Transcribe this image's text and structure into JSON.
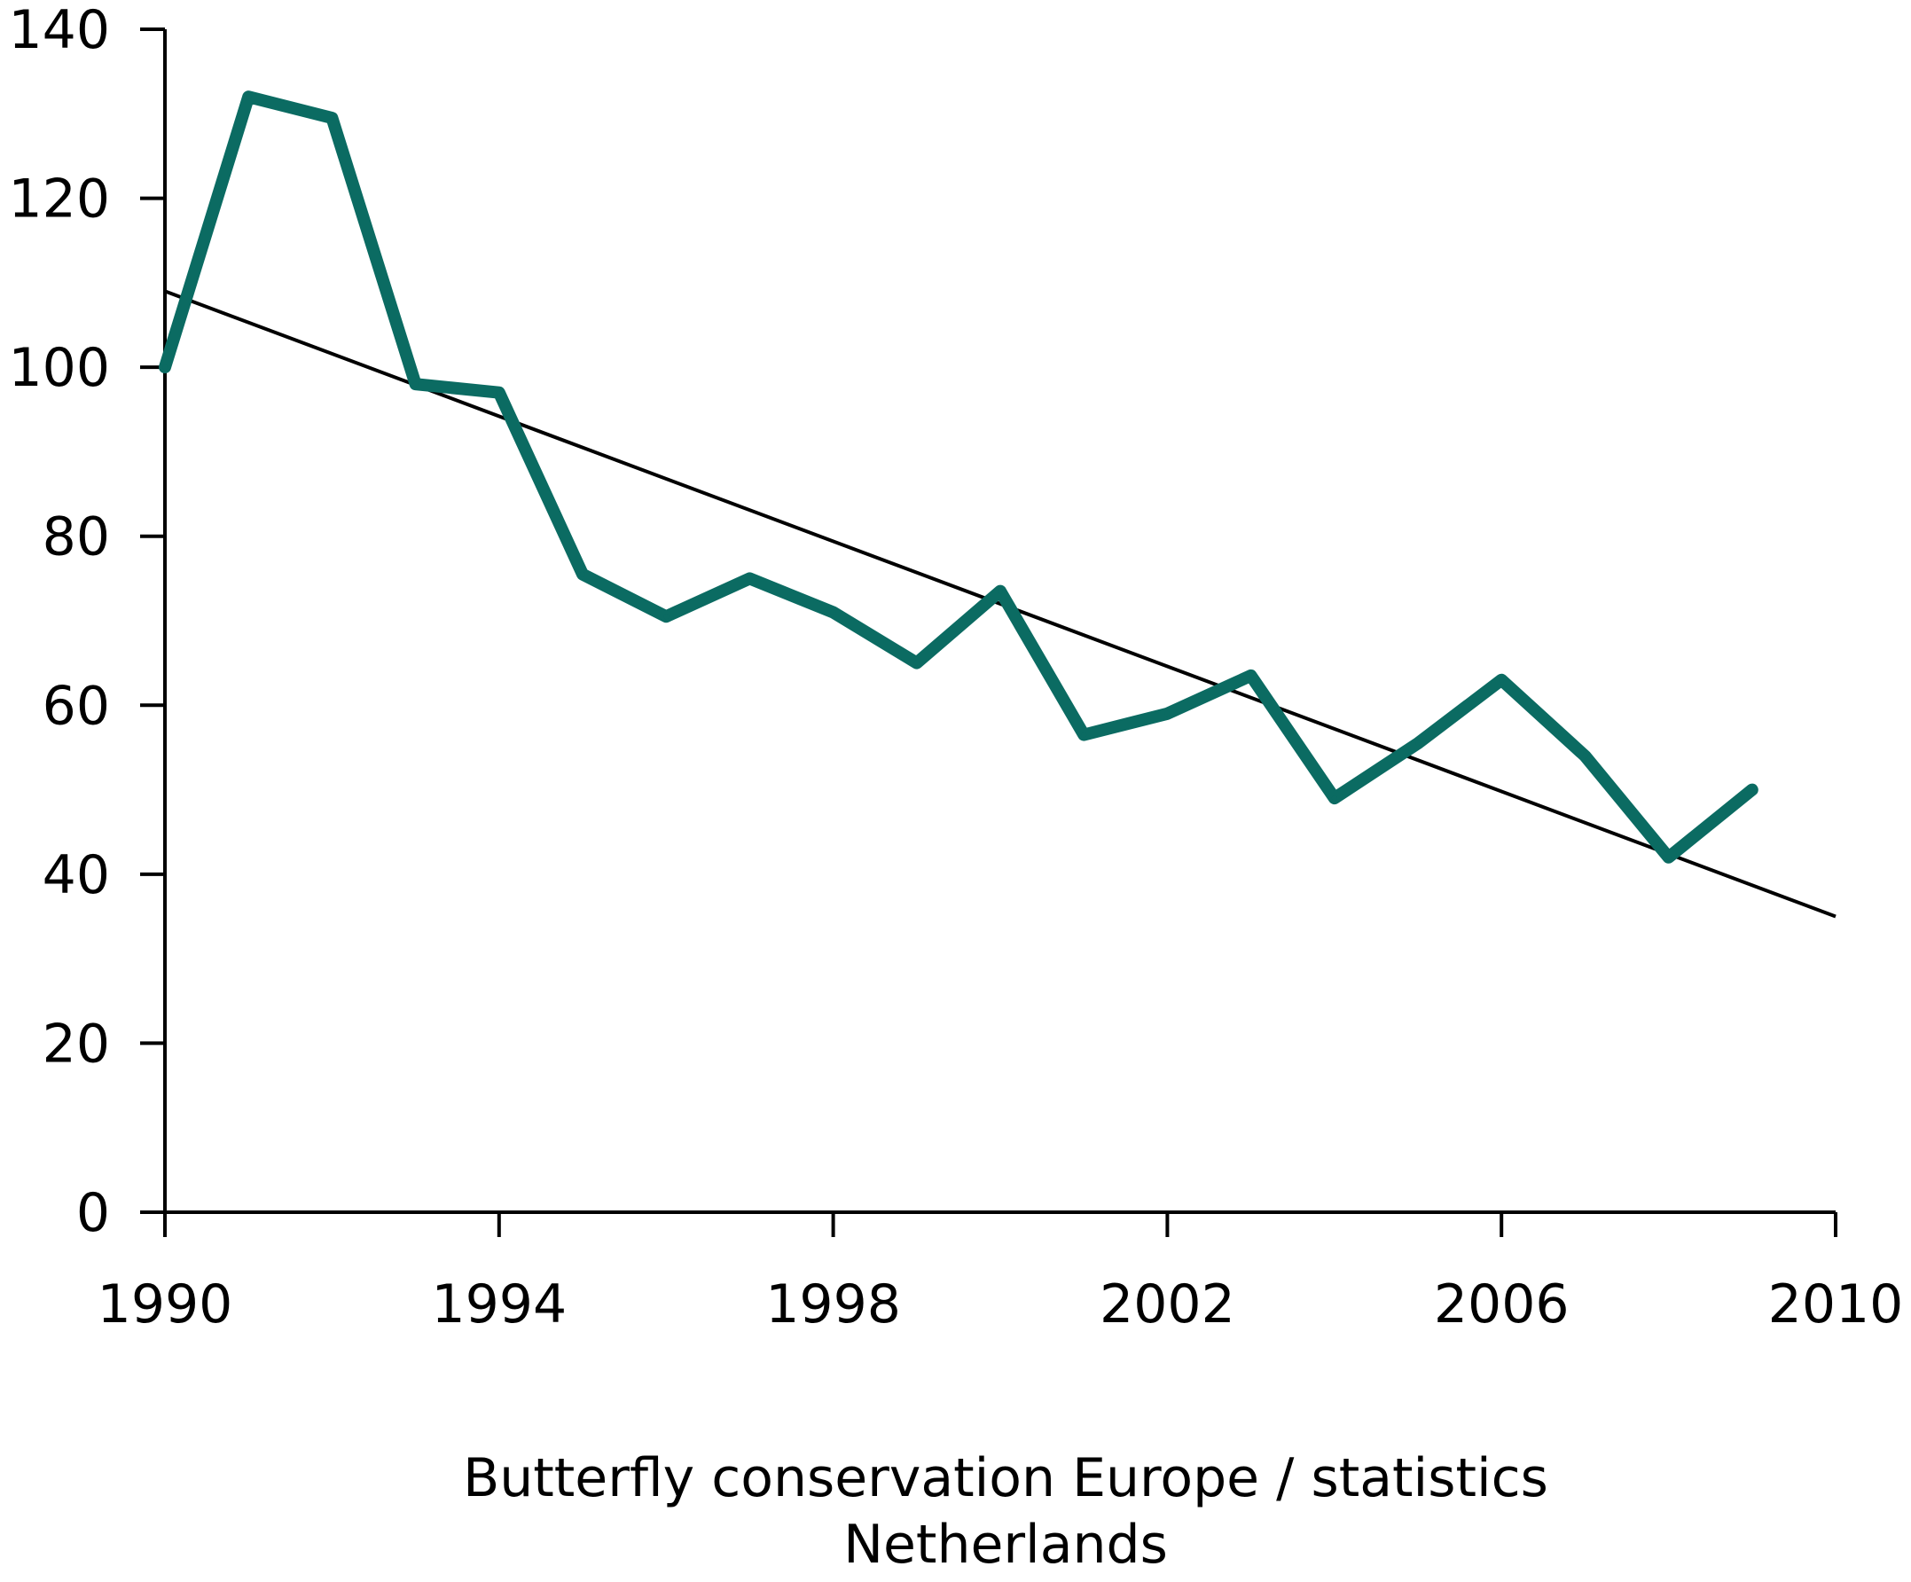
{
  "chart_data": {
    "type": "line",
    "x_range": [
      1990,
      2010
    ],
    "ylim": [
      0,
      140
    ],
    "x_ticks": [
      1990,
      1994,
      1998,
      2002,
      2006,
      2010
    ],
    "y_ticks": [
      0,
      20,
      40,
      60,
      80,
      100,
      120,
      140
    ],
    "grid": false,
    "series": [
      {
        "color": "#0b6b62",
        "x": [
          1990,
          1991,
          1992,
          1993,
          1994,
          1995,
          1996,
          1997,
          1998,
          1999,
          2000,
          2001,
          2002,
          2003,
          2004,
          2005,
          2006,
          2007,
          2008,
          2009
        ],
        "values": [
          100,
          132,
          129.5,
          98,
          97,
          75.5,
          70.5,
          75,
          71,
          65,
          73.5,
          56.5,
          59,
          63.5,
          49,
          55.5,
          63,
          54,
          42,
          50
        ]
      }
    ],
    "trend_line": {
      "color": "#000000",
      "x": [
        1990,
        2010
      ],
      "values": [
        109,
        35
      ]
    },
    "source_lines": [
      "Butterfly conservation Europe / statistics",
      "Netherlands"
    ]
  }
}
